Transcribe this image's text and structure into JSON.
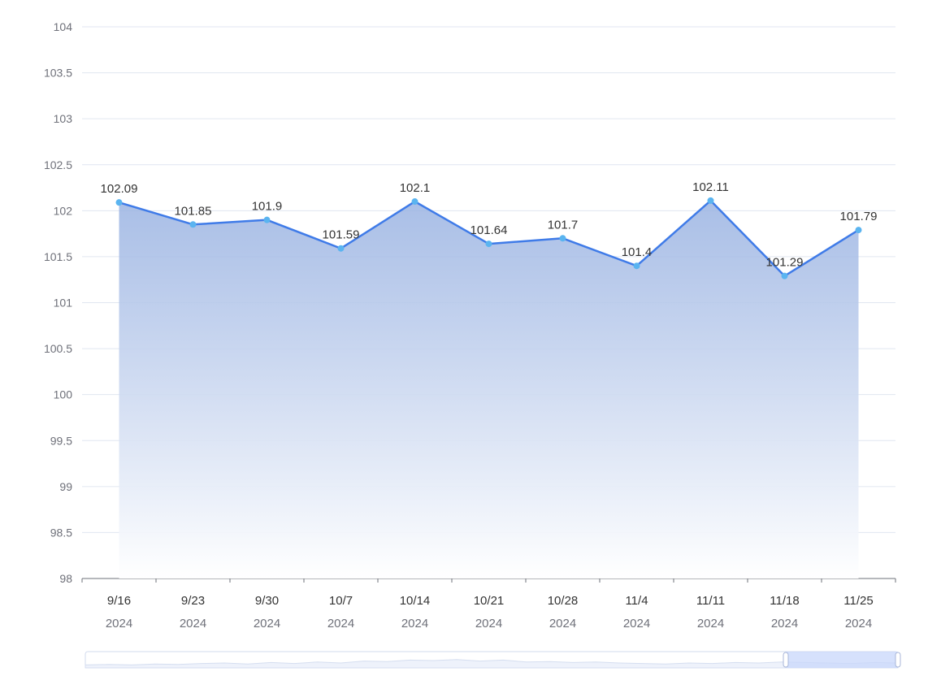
{
  "chart_data": {
    "type": "area",
    "title": "",
    "xlabel": "",
    "ylabel": "",
    "categories": [
      {
        "date": "9/16",
        "year": "2024"
      },
      {
        "date": "9/23",
        "year": "2024"
      },
      {
        "date": "9/30",
        "year": "2024"
      },
      {
        "date": "10/7",
        "year": "2024"
      },
      {
        "date": "10/14",
        "year": "2024"
      },
      {
        "date": "10/21",
        "year": "2024"
      },
      {
        "date": "10/28",
        "year": "2024"
      },
      {
        "date": "11/4",
        "year": "2024"
      },
      {
        "date": "11/11",
        "year": "2024"
      },
      {
        "date": "11/18",
        "year": "2024"
      },
      {
        "date": "11/25",
        "year": "2024"
      }
    ],
    "series": [
      {
        "values": [
          102.09,
          101.85,
          101.9,
          101.59,
          102.1,
          101.64,
          101.7,
          101.4,
          102.11,
          101.29,
          101.79
        ],
        "labels": [
          "102.09",
          "101.85",
          "101.9",
          "101.59",
          "102.1",
          "101.64",
          "101.7",
          "101.4",
          "102.11",
          "101.29",
          "101.79"
        ]
      }
    ],
    "ylim": [
      98,
      104
    ],
    "yticks": [
      "98",
      "98.5",
      "99",
      "99.5",
      "100",
      "100.5",
      "101",
      "101.5",
      "102",
      "102.5",
      "103",
      "103.5",
      "104"
    ],
    "ytick_values": [
      98,
      98.5,
      99,
      99.5,
      100,
      100.5,
      101,
      101.5,
      102,
      102.5,
      103,
      103.5,
      104
    ],
    "grid": true,
    "legend": "none",
    "data_zoom": {
      "visible": true,
      "selected_range": "end"
    },
    "colors": {
      "line": "#3f7be8",
      "marker": "#5ab4f0",
      "area_top": "#9ab3e2",
      "area_bottom": "#ffffff",
      "grid": "#e0e6f1",
      "axis_text": "#6e7079",
      "label_text": "#333333",
      "zoom_border": "#d2dbee",
      "zoom_fill": "#c8d7fb"
    }
  }
}
